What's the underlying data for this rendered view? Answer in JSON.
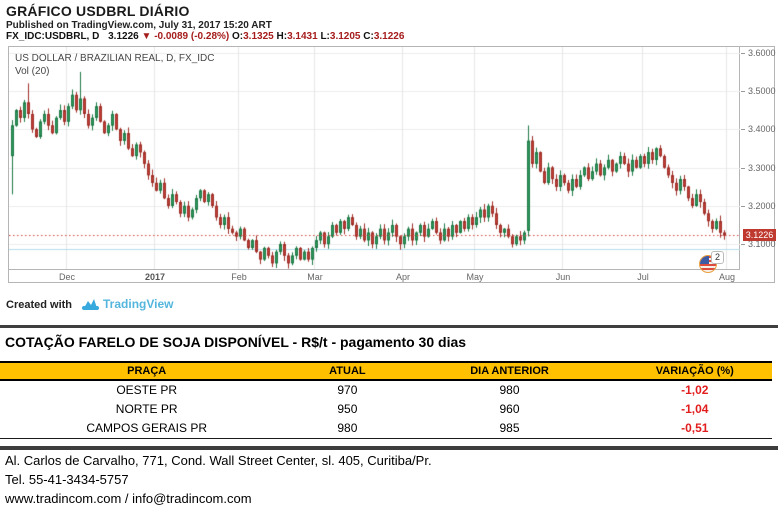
{
  "page": {
    "title": "GRÁFICO USDBRL DIÁRIO",
    "published": "Published on TradingView.com, July 31, 2017 15:20 ART"
  },
  "quote_line": {
    "symbol": "FX_IDC:USDBRL, D",
    "last": "3.1226",
    "direction_icon": "▼",
    "change": "-0.0089 (-0.28%)",
    "o_label": "O:",
    "o_value": "3.1325",
    "h_label": "H:",
    "h_value": "3.1431",
    "l_label": "L:",
    "l_value": "3.1205",
    "c_label": "C:",
    "c_value": "3.1226"
  },
  "chart": {
    "legend_title": "US DOLLAR / BRAZILIAN REAL, D, FX_IDC",
    "legend_vol": "Vol (20)",
    "event_count": "2",
    "created_with": "Created with",
    "tradingview": "TradingView",
    "price_badge": "3.1226"
  },
  "chart_data": {
    "type": "candlestick",
    "title": "US DOLLAR / BRAZILIAN REAL, D, FX_IDC",
    "ylim": [
      3.035,
      3.615
    ],
    "grid": true,
    "up_color": "#2e9960",
    "up_border": "#1e7a45",
    "down_color": "#c23f38",
    "down_border": "#9e2f28",
    "grid_color": "#ececec",
    "vgrid_color": "#e7e7e7",
    "price_line": {
      "value": 3.1226,
      "label": "3.1226",
      "color": "#cf443c"
    },
    "support_line": {
      "value": 3.087,
      "color": "#b5dce8"
    },
    "y_ticks": [
      {
        "label": "3.6000",
        "v": 3.6
      },
      {
        "label": "3.5000",
        "v": 3.5
      },
      {
        "label": "3.4000",
        "v": 3.4
      },
      {
        "label": "3.3000",
        "v": 3.3
      },
      {
        "label": "3.2000",
        "v": 3.2
      },
      {
        "label": "3.1000",
        "v": 3.1
      }
    ],
    "x_ticks": [
      {
        "label": "Dec",
        "i": 14
      },
      {
        "label": "2017",
        "i": 36,
        "bold": true
      },
      {
        "label": "Feb",
        "i": 57
      },
      {
        "label": "Mar",
        "i": 76
      },
      {
        "label": "Apr",
        "i": 98
      },
      {
        "label": "May",
        "i": 116
      },
      {
        "label": "Jun",
        "i": 138
      },
      {
        "label": "Jul",
        "i": 158
      },
      {
        "label": "Aug",
        "i": 179
      }
    ],
    "closes": [
      3.41,
      3.45,
      3.43,
      3.47,
      3.44,
      3.4,
      3.38,
      3.42,
      3.44,
      3.41,
      3.39,
      3.43,
      3.45,
      3.42,
      3.46,
      3.49,
      3.45,
      3.48,
      3.44,
      3.41,
      3.43,
      3.46,
      3.42,
      3.39,
      3.41,
      3.44,
      3.4,
      3.37,
      3.39,
      3.35,
      3.33,
      3.36,
      3.34,
      3.31,
      3.28,
      3.26,
      3.24,
      3.26,
      3.22,
      3.2,
      3.23,
      3.21,
      3.18,
      3.2,
      3.17,
      3.19,
      3.22,
      3.24,
      3.21,
      3.23,
      3.2,
      3.17,
      3.15,
      3.17,
      3.14,
      3.13,
      3.12,
      3.14,
      3.11,
      3.09,
      3.11,
      3.08,
      3.06,
      3.09,
      3.07,
      3.05,
      3.08,
      3.1,
      3.07,
      3.05,
      3.07,
      3.09,
      3.06,
      3.08,
      3.06,
      3.09,
      3.11,
      3.13,
      3.1,
      3.12,
      3.15,
      3.13,
      3.16,
      3.14,
      3.17,
      3.15,
      3.12,
      3.14,
      3.11,
      3.13,
      3.1,
      3.12,
      3.14,
      3.11,
      3.13,
      3.15,
      3.12,
      3.1,
      3.12,
      3.14,
      3.11,
      3.13,
      3.15,
      3.12,
      3.14,
      3.16,
      3.13,
      3.11,
      3.14,
      3.12,
      3.15,
      3.13,
      3.16,
      3.14,
      3.17,
      3.15,
      3.17,
      3.19,
      3.17,
      3.2,
      3.18,
      3.15,
      3.13,
      3.14,
      3.12,
      3.1,
      3.12,
      3.11,
      3.13,
      3.37,
      3.31,
      3.34,
      3.29,
      3.26,
      3.3,
      3.27,
      3.25,
      3.28,
      3.26,
      3.24,
      3.27,
      3.25,
      3.28,
      3.3,
      3.27,
      3.29,
      3.31,
      3.28,
      3.3,
      3.32,
      3.29,
      3.31,
      3.33,
      3.31,
      3.29,
      3.32,
      3.3,
      3.33,
      3.31,
      3.34,
      3.32,
      3.35,
      3.33,
      3.3,
      3.28,
      3.26,
      3.24,
      3.27,
      3.25,
      3.22,
      3.2,
      3.23,
      3.21,
      3.18,
      3.16,
      3.14,
      3.16,
      3.13,
      3.1226
    ],
    "overrides": {
      "0": {
        "o": 3.33,
        "l": 3.23
      },
      "4": {
        "h": 3.52
      },
      "17": {
        "h": 3.55
      },
      "129": {
        "o": 3.135,
        "h": 3.41,
        "l": 3.12
      }
    }
  },
  "table": {
    "title": "COTAÇÃO FARELO DE SOJA DISPONÍVEL - R$/t - pagamento 30 dias",
    "headers": [
      "PRAÇA",
      "ATUAL",
      "DIA ANTERIOR",
      "VARIAÇÃO (%)"
    ],
    "header_bg": "#FFC000",
    "negative_color": "#E21D1D",
    "rows": [
      {
        "praca": "OESTE PR",
        "atual": "970",
        "anterior": "980",
        "variacao": "-1,02"
      },
      {
        "praca": "NORTE PR",
        "atual": "950",
        "anterior": "960",
        "variacao": "-1,04"
      },
      {
        "praca": "CAMPOS GERAIS PR",
        "atual": "980",
        "anterior": "985",
        "variacao": "-0,51"
      }
    ]
  },
  "footer": {
    "address": "Al. Carlos de Carvalho, 771, Cond. Wall Street Center, sl. 405, Curitiba/Pr.",
    "phone": "Tel. 55-41-3434-5757",
    "web": "www.tradincom.com / info@tradincom.com"
  }
}
